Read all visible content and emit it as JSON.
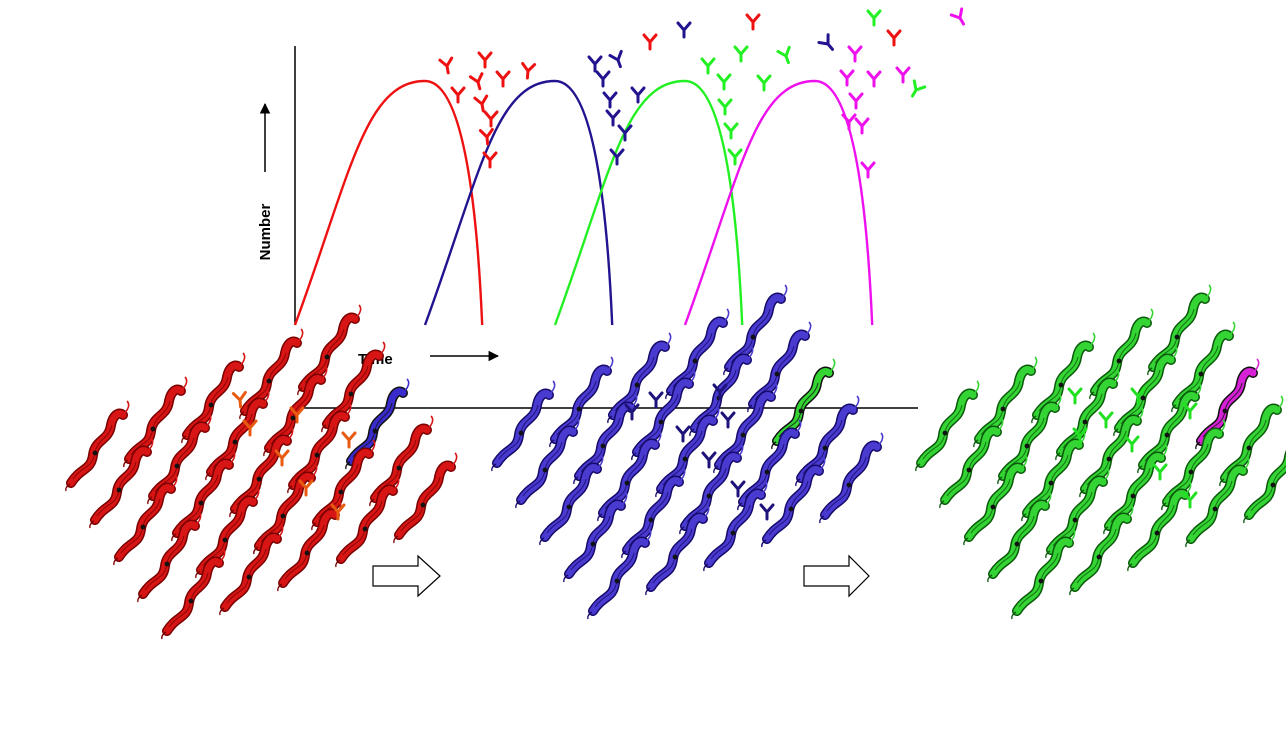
{
  "graph": {
    "ylabel": "Number",
    "xlabel": "Time",
    "waves": [
      {
        "color": "#ee1111",
        "rise": 0,
        "peak": 1,
        "fall": 1.44
      },
      {
        "color": "#22138f",
        "rise": 1.0,
        "peak": 2,
        "fall": 2.44
      },
      {
        "color": "#22f022",
        "rise": 2.0,
        "peak": 3,
        "fall": 3.44
      },
      {
        "color": "#ee11ee",
        "rise": 3.0,
        "peak": 4,
        "fall": 4.44
      }
    ]
  },
  "panels": [
    {
      "body_color": "#d81515",
      "outline": "#7a0000",
      "antibody_color": "#e85a10",
      "variant_color": "#3a2bcc"
    },
    {
      "body_color": "#4a3bd0",
      "outline": "#160a6a",
      "antibody_color": "#1e137a",
      "variant_color": "#33d433"
    },
    {
      "body_color": "#33d433",
      "outline": "#0b5a0b",
      "antibody_color": "#22e022",
      "variant_color": "#d621d6"
    }
  ],
  "colors": {
    "red": "#ee1111",
    "blue": "#22138f",
    "green": "#22f022",
    "magenta": "#ee11ee"
  }
}
